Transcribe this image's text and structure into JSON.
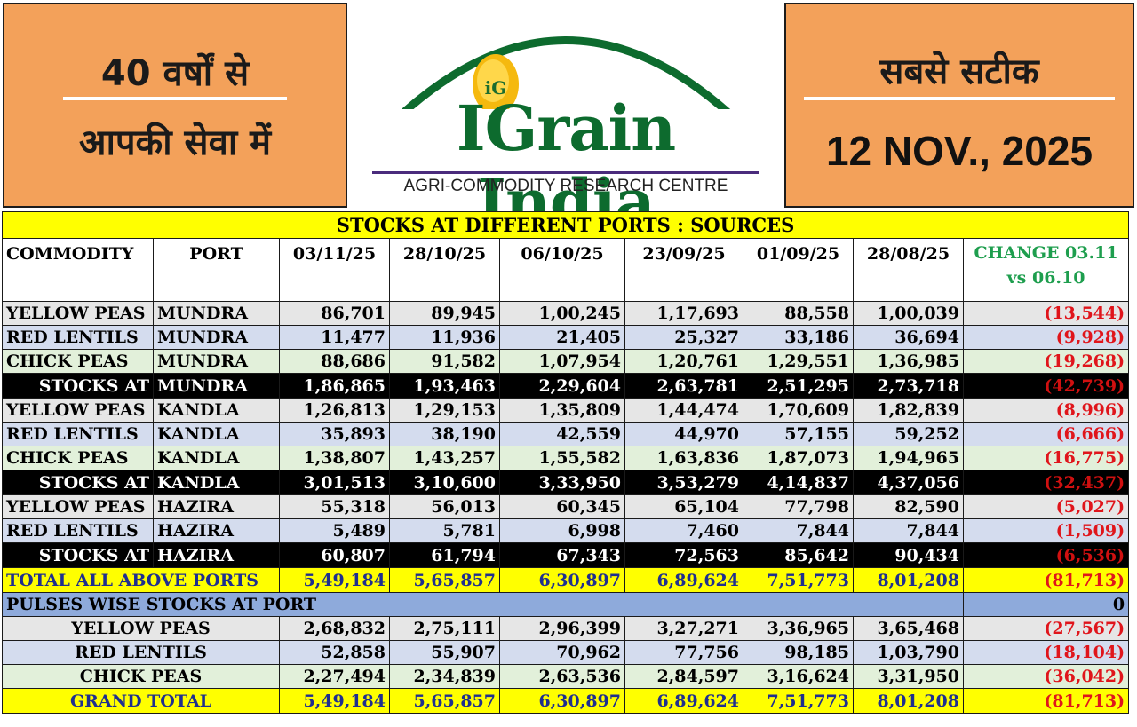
{
  "header": {
    "left_line1": "40 वर्षों से",
    "left_line2": "आपकी सेवा में",
    "right_line1": "सबसे सटीक",
    "date": "12 NOV., 2025",
    "brand": "IGrain India",
    "tagline": "AGRI-COMMODITY RESEARCH CENTRE",
    "logo_badge": "iG"
  },
  "table": {
    "title": "STOCKS AT DIFFERENT PORTS : SOURCES",
    "col_commodity": "COMMODITY",
    "col_port": "PORT",
    "dates": [
      "03/11/25",
      "28/10/25",
      "06/10/25",
      "23/09/25",
      "01/09/25",
      "28/08/25"
    ],
    "change_line1": "CHANGE 03.11",
    "change_line2": "vs 06.10",
    "rows": [
      {
        "type": "plain",
        "commodity": "YELLOW PEAS",
        "port": "MUNDRA",
        "values": [
          "86,701",
          "89,945",
          "1,00,245",
          "1,17,693",
          "88,558",
          "1,00,039"
        ],
        "change": "(13,544)"
      },
      {
        "type": "lentil",
        "commodity": "RED LENTILS",
        "port": "MUNDRA",
        "values": [
          "11,477",
          "11,936",
          "21,405",
          "25,327",
          "33,186",
          "36,694"
        ],
        "change": "(9,928)"
      },
      {
        "type": "chick",
        "commodity": "CHICK PEAS",
        "port": "MUNDRA",
        "values": [
          "88,686",
          "91,582",
          "1,07,954",
          "1,20,761",
          "1,29,551",
          "1,36,985"
        ],
        "change": "(19,268)"
      },
      {
        "type": "stock",
        "commodity": "STOCKS AT",
        "port": "MUNDRA",
        "values": [
          "1,86,865",
          "1,93,463",
          "2,29,604",
          "2,63,781",
          "2,51,295",
          "2,73,718"
        ],
        "change": "(42,739)"
      },
      {
        "type": "plain",
        "commodity": "YELLOW PEAS",
        "port": "KANDLA",
        "values": [
          "1,26,813",
          "1,29,153",
          "1,35,809",
          "1,44,474",
          "1,70,609",
          "1,82,839"
        ],
        "change": "(8,996)"
      },
      {
        "type": "lentil",
        "commodity": "RED LENTILS",
        "port": "KANDLA",
        "values": [
          "35,893",
          "38,190",
          "42,559",
          "44,970",
          "57,155",
          "59,252"
        ],
        "change": "(6,666)"
      },
      {
        "type": "chick",
        "commodity": "CHICK PEAS",
        "port": "KANDLA",
        "values": [
          "1,38,807",
          "1,43,257",
          "1,55,582",
          "1,63,836",
          "1,87,073",
          "1,94,965"
        ],
        "change": "(16,775)"
      },
      {
        "type": "stock",
        "commodity": "STOCKS AT",
        "port": "KANDLA",
        "values": [
          "3,01,513",
          "3,10,600",
          "3,33,950",
          "3,53,279",
          "4,14,837",
          "4,37,056"
        ],
        "change": "(32,437)"
      },
      {
        "type": "plain",
        "commodity": "YELLOW PEAS",
        "port": "HAZIRA",
        "values": [
          "55,318",
          "56,013",
          "60,345",
          "65,104",
          "77,798",
          "82,590"
        ],
        "change": "(5,027)"
      },
      {
        "type": "lentil",
        "commodity": "RED LENTILS",
        "port": "HAZIRA",
        "values": [
          "5,489",
          "5,781",
          "6,998",
          "7,460",
          "7,844",
          "7,844"
        ],
        "change": "(1,509)"
      },
      {
        "type": "stock",
        "commodity": "STOCKS AT",
        "port": "HAZIRA",
        "values": [
          "60,807",
          "61,794",
          "67,343",
          "72,563",
          "85,642",
          "90,434"
        ],
        "change": "(6,536)"
      }
    ],
    "total_ports": {
      "label": "TOTAL ALL ABOVE PORTS",
      "values": [
        "5,49,184",
        "5,65,857",
        "6,30,897",
        "6,89,624",
        "7,51,773",
        "8,01,208"
      ],
      "change": "(81,713)"
    },
    "pulses_header": {
      "label": "PULSES WISE STOCKS AT PORT",
      "value": "0"
    },
    "pulse_rows": [
      {
        "type": "plain",
        "label": "YELLOW PEAS",
        "values": [
          "2,68,832",
          "2,75,111",
          "2,96,399",
          "3,27,271",
          "3,36,965",
          "3,65,468"
        ],
        "change": "(27,567)"
      },
      {
        "type": "lentil",
        "label": "RED LENTILS",
        "values": [
          "52,858",
          "55,907",
          "70,962",
          "77,756",
          "98,185",
          "1,03,790"
        ],
        "change": "(18,104)"
      },
      {
        "type": "chick",
        "label": "CHICK PEAS",
        "values": [
          "2,27,494",
          "2,34,839",
          "2,63,536",
          "2,84,597",
          "3,16,624",
          "3,31,950"
        ],
        "change": "(36,042)"
      }
    ],
    "grand_total": {
      "label": "GRAND TOTAL",
      "values": [
        "5,49,184",
        "5,65,857",
        "6,30,897",
        "6,89,624",
        "7,51,773",
        "8,01,208"
      ],
      "change": "(81,713)"
    }
  },
  "colors": {
    "orange": "#f3a15a",
    "green": "#0d6b2e",
    "yellow": "#ffff00",
    "blue": "#8eaadb",
    "negative": "#e0151b"
  }
}
